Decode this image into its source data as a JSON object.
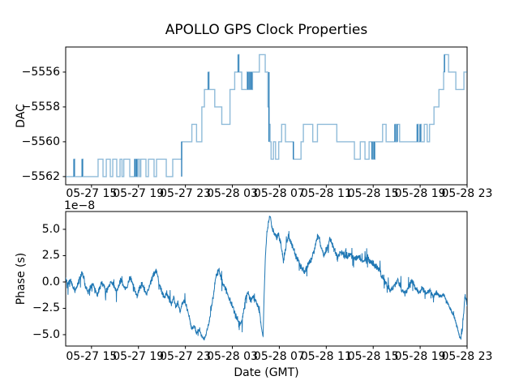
{
  "figure": {
    "title": "APOLLO GPS Clock Properties",
    "background": "#ffffff",
    "axis_color": "#000000"
  },
  "chart_data": [
    {
      "type": "line",
      "subtype": "step-post",
      "ylabel": "DAC",
      "color": "#1f77b4",
      "line_alpha": 0.5,
      "xlim": [
        12.8,
        47.0
      ],
      "ylim": [
        -5562.47,
        -5554.56
      ],
      "x_unit": "hours, dates 05-27 to 05-28 (GMT)",
      "xticks": [
        15,
        19,
        23,
        27,
        31,
        35,
        39,
        43,
        47
      ],
      "xtick_labels": [
        "05-27 15",
        "05-27 19",
        "05-27 23",
        "05-28 03",
        "05-28 07",
        "05-28 11",
        "05-28 15",
        "05-28 19",
        "05-28 23"
      ],
      "yticks": [
        -5556,
        -5558,
        -5560,
        -5562
      ],
      "ytick_labels": [
        "−5556",
        "−5558",
        "−5560",
        "−5562"
      ],
      "grid": false,
      "legend": "none",
      "steps": [
        [
          12.8,
          -5562
        ],
        [
          13.5,
          -5561
        ],
        [
          13.58,
          -5562
        ],
        [
          14.2,
          -5561
        ],
        [
          14.28,
          -5562
        ],
        [
          15.56,
          -5561
        ],
        [
          15.98,
          -5562
        ],
        [
          16.26,
          -5561
        ],
        [
          16.6,
          -5562
        ],
        [
          16.81,
          -5561
        ],
        [
          17.15,
          -5562
        ],
        [
          17.43,
          -5561
        ],
        [
          17.6,
          -5562
        ],
        [
          17.75,
          -5561
        ],
        [
          18.26,
          -5562
        ],
        [
          18.67,
          -5561
        ],
        [
          18.73,
          -5562
        ],
        [
          18.8,
          -5561
        ],
        [
          18.88,
          -5562
        ],
        [
          18.95,
          -5561
        ],
        [
          19.09,
          -5562
        ],
        [
          19.2,
          -5561
        ],
        [
          19.64,
          -5562
        ],
        [
          19.85,
          -5561
        ],
        [
          20.33,
          -5562
        ],
        [
          20.54,
          -5561
        ],
        [
          21.37,
          -5562
        ],
        [
          21.92,
          -5561
        ],
        [
          22.68,
          -5560
        ],
        [
          23.55,
          -5559
        ],
        [
          23.95,
          -5560
        ],
        [
          24.4,
          -5558
        ],
        [
          24.62,
          -5557
        ],
        [
          24.95,
          -5556
        ],
        [
          25.02,
          -5557
        ],
        [
          25.5,
          -5558
        ],
        [
          26.1,
          -5559
        ],
        [
          26.8,
          -5557
        ],
        [
          27.2,
          -5556
        ],
        [
          27.5,
          -5555
        ],
        [
          27.57,
          -5556
        ],
        [
          27.8,
          -5557
        ],
        [
          28.25,
          -5556
        ],
        [
          28.33,
          -5557
        ],
        [
          28.42,
          -5556
        ],
        [
          28.5,
          -5557
        ],
        [
          28.58,
          -5556
        ],
        [
          28.65,
          -5557
        ],
        [
          28.72,
          -5556
        ],
        [
          29.3,
          -5555
        ],
        [
          29.8,
          -5556
        ],
        [
          30.02,
          -5558
        ],
        [
          30.12,
          -5559
        ],
        [
          30.22,
          -5560
        ],
        [
          30.3,
          -5561
        ],
        [
          30.5,
          -5560
        ],
        [
          30.68,
          -5561
        ],
        [
          30.95,
          -5560
        ],
        [
          31.2,
          -5559
        ],
        [
          31.52,
          -5560
        ],
        [
          32.2,
          -5561
        ],
        [
          32.85,
          -5560
        ],
        [
          33.05,
          -5559
        ],
        [
          33.85,
          -5560
        ],
        [
          34.25,
          -5559
        ],
        [
          35.9,
          -5560
        ],
        [
          37.4,
          -5561
        ],
        [
          37.9,
          -5560
        ],
        [
          38.3,
          -5561
        ],
        [
          38.65,
          -5560
        ],
        [
          38.9,
          -5561
        ],
        [
          39.0,
          -5560
        ],
        [
          39.08,
          -5561
        ],
        [
          39.16,
          -5560
        ],
        [
          39.8,
          -5559
        ],
        [
          40.1,
          -5560
        ],
        [
          40.85,
          -5559
        ],
        [
          40.95,
          -5560
        ],
        [
          41.05,
          -5559
        ],
        [
          41.25,
          -5560
        ],
        [
          42.75,
          -5559
        ],
        [
          42.85,
          -5560
        ],
        [
          43.0,
          -5559
        ],
        [
          43.1,
          -5560
        ],
        [
          43.35,
          -5559
        ],
        [
          43.6,
          -5560
        ],
        [
          43.8,
          -5559
        ],
        [
          44.18,
          -5558
        ],
        [
          44.6,
          -5557
        ],
        [
          45.0,
          -5556
        ],
        [
          45.07,
          -5555
        ],
        [
          45.42,
          -5556
        ],
        [
          46.04,
          -5557
        ],
        [
          46.73,
          -5556
        ]
      ],
      "dark_spikes": [
        [
          13.5,
          -5562,
          -5561
        ],
        [
          14.2,
          -5562,
          -5561
        ],
        [
          18.7,
          -5562,
          -5561
        ],
        [
          18.85,
          -5562,
          -5561
        ],
        [
          22.68,
          -5562,
          -5560
        ],
        [
          24.95,
          -5557,
          -5556
        ],
        [
          27.5,
          -5556,
          -5555
        ],
        [
          28.33,
          -5557,
          -5556
        ],
        [
          28.5,
          -5557,
          -5556
        ],
        [
          28.65,
          -5557,
          -5556
        ],
        [
          30.12,
          -5560,
          -5556
        ],
        [
          32.2,
          -5561,
          -5560
        ],
        [
          38.9,
          -5561,
          -5560
        ],
        [
          39.08,
          -5561,
          -5560
        ],
        [
          40.85,
          -5560,
          -5559
        ],
        [
          41.05,
          -5560,
          -5559
        ],
        [
          42.75,
          -5560,
          -5559
        ],
        [
          43.0,
          -5560,
          -5559
        ],
        [
          45.07,
          -5556,
          -5555
        ]
      ]
    },
    {
      "type": "line",
      "ylabel": "Phase (s)",
      "xlabel": "Date (GMT)",
      "offset_text": "1e−8",
      "value_scale": 1e-08,
      "color": "#1f77b4",
      "xlim": [
        12.8,
        47.0
      ],
      "ylim": [
        -6.08,
        6.69
      ],
      "xticks": [
        15,
        19,
        23,
        27,
        31,
        35,
        39,
        43,
        47
      ],
      "xtick_labels": [
        "05-27 15",
        "05-27 19",
        "05-27 23",
        "05-28 03",
        "05-28 07",
        "05-28 11",
        "05-28 15",
        "05-28 19",
        "05-28 23"
      ],
      "yticks": [
        5.0,
        2.5,
        0.0,
        -2.5,
        -5.0
      ],
      "ytick_labels": [
        "5.0",
        "2.5",
        "0.0",
        "−2.5",
        "−5.0"
      ],
      "grid": false,
      "legend": "none",
      "anchors": [
        [
          12.8,
          0.4
        ],
        [
          13.0,
          -0.2
        ],
        [
          13.2,
          0.2
        ],
        [
          13.4,
          -0.5
        ],
        [
          13.6,
          -0.8
        ],
        [
          13.8,
          -0.3
        ],
        [
          14.0,
          0.3
        ],
        [
          14.2,
          1.0
        ],
        [
          14.35,
          0.4
        ],
        [
          14.5,
          -0.6
        ],
        [
          14.7,
          -1.0
        ],
        [
          14.9,
          -0.5
        ],
        [
          15.1,
          -0.2
        ],
        [
          15.3,
          -0.7
        ],
        [
          15.5,
          -1.3
        ],
        [
          15.7,
          -0.6
        ],
        [
          15.9,
          -0.1
        ],
        [
          16.1,
          -0.5
        ],
        [
          16.3,
          -1.0
        ],
        [
          16.5,
          -0.4
        ],
        [
          16.7,
          0.1
        ],
        [
          16.9,
          -0.4
        ],
        [
          17.1,
          -0.9
        ],
        [
          17.3,
          -0.4
        ],
        [
          17.5,
          0.2
        ],
        [
          17.7,
          -0.3
        ],
        [
          17.9,
          -0.8
        ],
        [
          18.1,
          -0.2
        ],
        [
          18.3,
          0.5
        ],
        [
          18.5,
          -0.2
        ],
        [
          18.7,
          -0.9
        ],
        [
          18.9,
          -1.3
        ],
        [
          19.1,
          -0.6
        ],
        [
          19.3,
          -0.2
        ],
        [
          19.5,
          -0.7
        ],
        [
          19.7,
          -1.1
        ],
        [
          19.9,
          -0.5
        ],
        [
          20.1,
          0.1
        ],
        [
          20.3,
          0.8
        ],
        [
          20.5,
          1.2
        ],
        [
          20.65,
          0.5
        ],
        [
          20.8,
          -0.4
        ],
        [
          21.0,
          -1.0
        ],
        [
          21.2,
          -1.5
        ],
        [
          21.4,
          -1.0
        ],
        [
          21.6,
          -1.6
        ],
        [
          21.8,
          -2.1
        ],
        [
          22.0,
          -1.4
        ],
        [
          22.2,
          -2.5
        ],
        [
          22.35,
          -1.8
        ],
        [
          22.55,
          -2.9
        ],
        [
          22.7,
          -2.1
        ],
        [
          22.9,
          -1.7
        ],
        [
          23.1,
          -2.3
        ],
        [
          23.35,
          -3.4
        ],
        [
          23.55,
          -4.5
        ],
        [
          23.75,
          -4.1
        ],
        [
          23.95,
          -4.9
        ],
        [
          24.15,
          -4.5
        ],
        [
          24.4,
          -5.1
        ],
        [
          24.6,
          -5.5
        ],
        [
          24.78,
          -4.8
        ],
        [
          24.95,
          -4.2
        ],
        [
          25.15,
          -3.0
        ],
        [
          25.4,
          -1.2
        ],
        [
          25.6,
          0.6
        ],
        [
          25.85,
          1.1
        ],
        [
          26.1,
          0.2
        ],
        [
          26.35,
          -0.5
        ],
        [
          26.6,
          -1.1
        ],
        [
          26.85,
          -1.9
        ],
        [
          27.1,
          -2.6
        ],
        [
          27.4,
          -3.4
        ],
        [
          27.65,
          -4.0
        ],
        [
          27.85,
          -3.6
        ],
        [
          28.0,
          -2.4
        ],
        [
          28.15,
          -1.4
        ],
        [
          28.35,
          -1.1
        ],
        [
          28.55,
          -1.8
        ],
        [
          28.75,
          -1.3
        ],
        [
          28.95,
          -1.8
        ],
        [
          29.15,
          -2.2
        ],
        [
          29.35,
          -3.0
        ],
        [
          29.5,
          -4.6
        ],
        [
          29.62,
          -5.2
        ],
        [
          29.7,
          -1.5
        ],
        [
          29.82,
          2.6
        ],
        [
          29.95,
          4.7
        ],
        [
          30.1,
          5.8
        ],
        [
          30.2,
          6.3
        ],
        [
          30.35,
          5.3
        ],
        [
          30.55,
          4.7
        ],
        [
          30.75,
          4.3
        ],
        [
          30.95,
          4.5
        ],
        [
          31.15,
          3.5
        ],
        [
          31.35,
          2.0
        ],
        [
          31.55,
          3.3
        ],
        [
          31.75,
          4.3
        ],
        [
          31.95,
          3.9
        ],
        [
          32.15,
          3.3
        ],
        [
          32.4,
          2.5
        ],
        [
          32.65,
          1.9
        ],
        [
          32.9,
          1.3
        ],
        [
          33.15,
          1.0
        ],
        [
          33.45,
          1.6
        ],
        [
          33.75,
          2.2
        ],
        [
          34.0,
          3.0
        ],
        [
          34.2,
          4.2
        ],
        [
          34.35,
          4.4
        ],
        [
          34.55,
          3.3
        ],
        [
          34.8,
          2.5
        ],
        [
          35.05,
          3.1
        ],
        [
          35.3,
          4.2
        ],
        [
          35.5,
          3.6
        ],
        [
          35.75,
          2.9
        ],
        [
          36.0,
          2.5
        ],
        [
          36.35,
          2.8
        ],
        [
          36.7,
          2.3
        ],
        [
          37.05,
          2.6
        ],
        [
          37.4,
          2.2
        ],
        [
          37.75,
          2.4
        ],
        [
          38.1,
          1.9
        ],
        [
          38.45,
          2.3
        ],
        [
          38.8,
          1.9
        ],
        [
          39.15,
          1.6
        ],
        [
          39.5,
          1.2
        ],
        [
          39.8,
          0.5
        ],
        [
          40.1,
          -0.2
        ],
        [
          40.45,
          -0.8
        ],
        [
          40.8,
          -0.4
        ],
        [
          41.1,
          0.1
        ],
        [
          41.4,
          -0.7
        ],
        [
          41.7,
          -1.1
        ],
        [
          42.0,
          -0.5
        ],
        [
          42.3,
          0.2
        ],
        [
          42.6,
          -0.6
        ],
        [
          42.9,
          -1.0
        ],
        [
          43.2,
          -0.6
        ],
        [
          43.5,
          -1.1
        ],
        [
          43.8,
          -0.8
        ],
        [
          44.1,
          -1.3
        ],
        [
          44.4,
          -1.0
        ],
        [
          44.7,
          -1.4
        ],
        [
          45.0,
          -1.2
        ],
        [
          45.3,
          -1.9
        ],
        [
          45.6,
          -2.6
        ],
        [
          45.9,
          -3.3
        ],
        [
          46.15,
          -4.3
        ],
        [
          46.35,
          -5.1
        ],
        [
          46.45,
          -5.4
        ],
        [
          46.6,
          -4.5
        ],
        [
          46.72,
          -2.8
        ],
        [
          46.82,
          -1.3
        ],
        [
          46.92,
          -1.7
        ],
        [
          47.0,
          -2.2
        ]
      ],
      "jitter": {
        "seed": 42,
        "n_points": 1900,
        "spike_probability": 0.05,
        "spike_scale": 3.2,
        "amplitude": [
          [
            12.8,
            0.33
          ],
          [
            23.2,
            0.2
          ],
          [
            25.2,
            0.35
          ],
          [
            29.4,
            0.12
          ],
          [
            29.75,
            0.3
          ],
          [
            30.6,
            0.38
          ],
          [
            33.0,
            0.35
          ],
          [
            40.0,
            0.32
          ],
          [
            44.5,
            0.22
          ],
          [
            46.65,
            0.25
          ]
        ]
      }
    }
  ]
}
